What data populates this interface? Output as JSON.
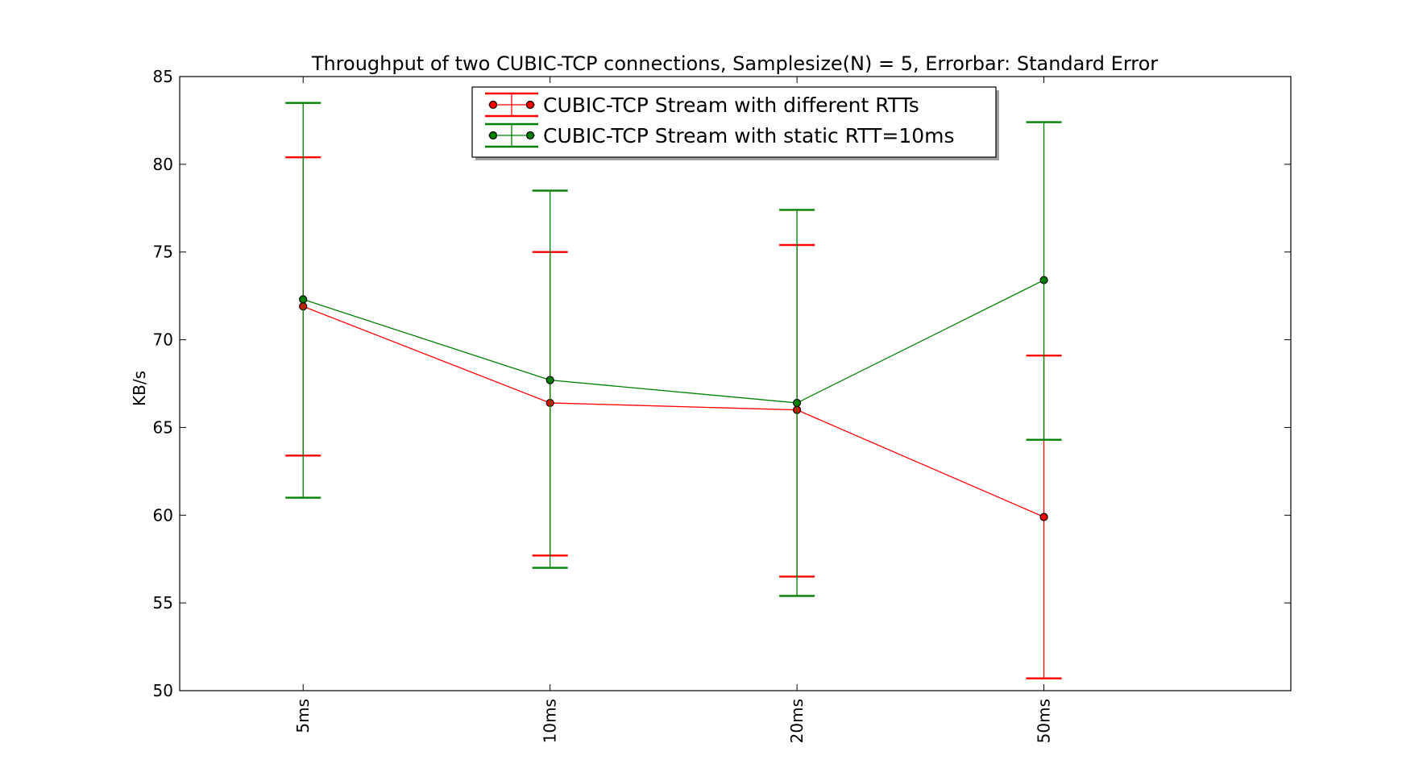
{
  "chart_data": {
    "type": "line",
    "title": "Throughput of two CUBIC-TCP connections, Samplesize(N) = 5, Errorbar: Standard Error",
    "xlabel": "",
    "ylabel": "KB/s",
    "categories": [
      "5ms",
      "10ms",
      "20ms",
      "50ms"
    ],
    "ylim": [
      50,
      85
    ],
    "yticks": [
      50,
      55,
      60,
      65,
      70,
      75,
      80,
      85
    ],
    "grid": false,
    "legend_position": "top-center",
    "series": [
      {
        "name": "CUBIC-TCP Stream with different RTTs",
        "color": "#ff0000",
        "values": [
          71.9,
          66.4,
          66.0,
          59.9
        ],
        "err_low": [
          63.4,
          57.7,
          56.5,
          50.7
        ],
        "err_high": [
          80.4,
          75.0,
          75.4,
          69.1
        ]
      },
      {
        "name": "CUBIC-TCP Stream with static RTT=10ms",
        "color": "#008000",
        "values": [
          72.3,
          67.7,
          66.4,
          73.4
        ],
        "err_low": [
          61.0,
          57.0,
          55.4,
          64.3
        ],
        "err_high": [
          83.5,
          78.5,
          77.4,
          82.4
        ]
      }
    ]
  }
}
